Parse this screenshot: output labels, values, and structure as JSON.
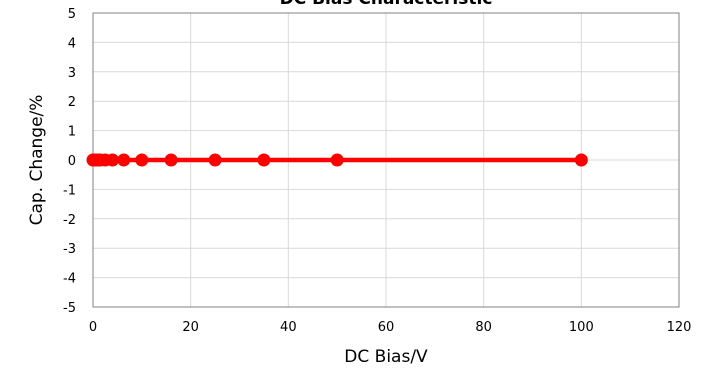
{
  "chart_data": {
    "type": "line",
    "title": "DC Bias Characteristic",
    "xlabel": "DC Bias/V",
    "ylabel": "Cap. Change/%",
    "xlim": [
      0,
      120
    ],
    "ylim": [
      -5,
      5
    ],
    "x_ticks": [
      0,
      20,
      40,
      60,
      80,
      100,
      120
    ],
    "y_ticks": [
      -5,
      -4,
      -3,
      -2,
      -1,
      0,
      1,
      2,
      3,
      4,
      5
    ],
    "grid": true,
    "legend": "none",
    "series": [
      {
        "color": "#ff0000",
        "x": [
          0,
          0.5,
          1,
          1.5,
          2.5,
          4,
          6.3,
          10,
          16,
          25,
          35,
          50,
          100
        ],
        "y": [
          0,
          0,
          0,
          0,
          0,
          0,
          0,
          0,
          0,
          0,
          0,
          0,
          0
        ]
      }
    ]
  }
}
